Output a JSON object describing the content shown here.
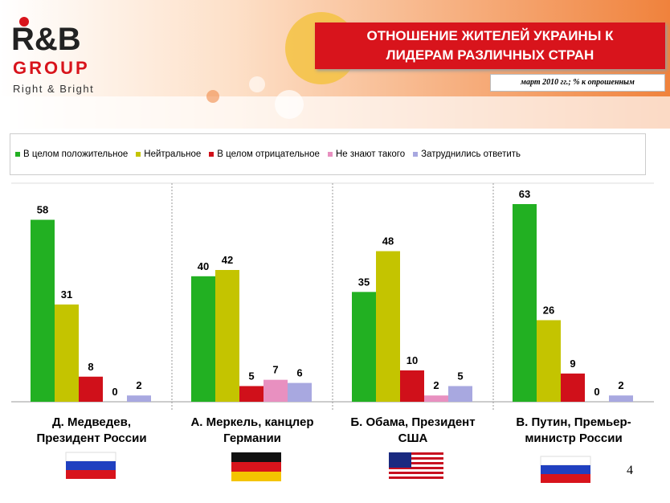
{
  "logo": {
    "brand": "R&B",
    "group": "GROUP",
    "tagline": "Right & Bright"
  },
  "page_number": "4",
  "chart_data": {
    "type": "bar",
    "title": "ОТНОШЕНИЕ ЖИТЕЛЕЙ УКРАИНЫ К\nЛИДЕРАМ РАЗЛИЧНЫХ СТРАН",
    "subtitle": "март 2010 гг.; % к опрошенным",
    "categories": [
      "Д. Медведев,\nПрезидент России",
      "А. Меркель, канцлер\nГермании",
      "Б. Обама, Президент\nСША",
      "В. Путин, Премьер-\nминистр России"
    ],
    "series": [
      {
        "name": "В целом положительное",
        "color": "#22b022",
        "values": [
          58,
          40,
          35,
          63
        ]
      },
      {
        "name": "Нейтральное",
        "color": "#c4c400",
        "values": [
          31,
          42,
          48,
          26
        ]
      },
      {
        "name": "В целом отрицательное",
        "color": "#d0101a",
        "values": [
          8,
          5,
          10,
          9
        ]
      },
      {
        "name": "Не знают такого",
        "color": "#e890c0",
        "values": [
          0,
          7,
          2,
          0
        ]
      },
      {
        "name": "Затруднились ответить",
        "color": "#a8a8e0",
        "values": [
          2,
          6,
          5,
          2
        ]
      }
    ],
    "legend": "top"
  }
}
